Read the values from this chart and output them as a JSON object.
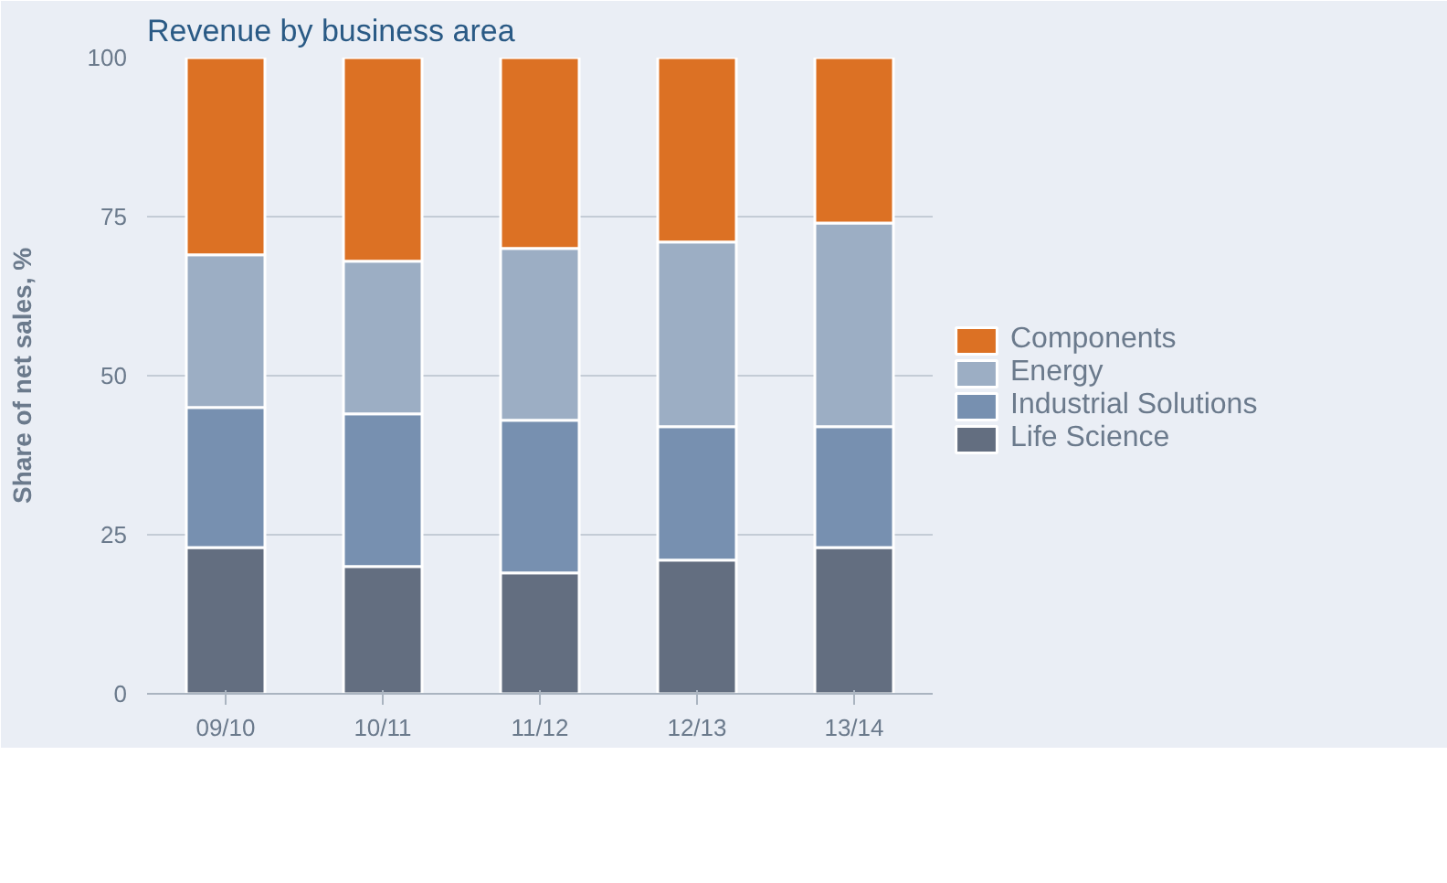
{
  "chart_data": {
    "type": "bar",
    "title": "Revenue by business area",
    "ylabel": "Share of net sales, %",
    "categories": [
      "09/10",
      "10/11",
      "11/12",
      "12/13",
      "13/14"
    ],
    "stacked": true,
    "series": [
      {
        "name": "Life Science",
        "color": "#636e80",
        "values": [
          23,
          20,
          19,
          21,
          23
        ]
      },
      {
        "name": "Industrial Solutions",
        "color": "#7790b0",
        "values": [
          22,
          24,
          24,
          21,
          19
        ]
      },
      {
        "name": "Energy",
        "color": "#9caec4",
        "values": [
          24,
          24,
          27,
          29,
          32
        ]
      },
      {
        "name": "Components",
        "color": "#dc7124",
        "values": [
          31,
          32,
          30,
          29,
          26
        ]
      }
    ],
    "ylim": [
      0,
      100
    ],
    "yticks": [
      0,
      25,
      50,
      75,
      100
    ],
    "grid": "y",
    "legend": "right"
  }
}
